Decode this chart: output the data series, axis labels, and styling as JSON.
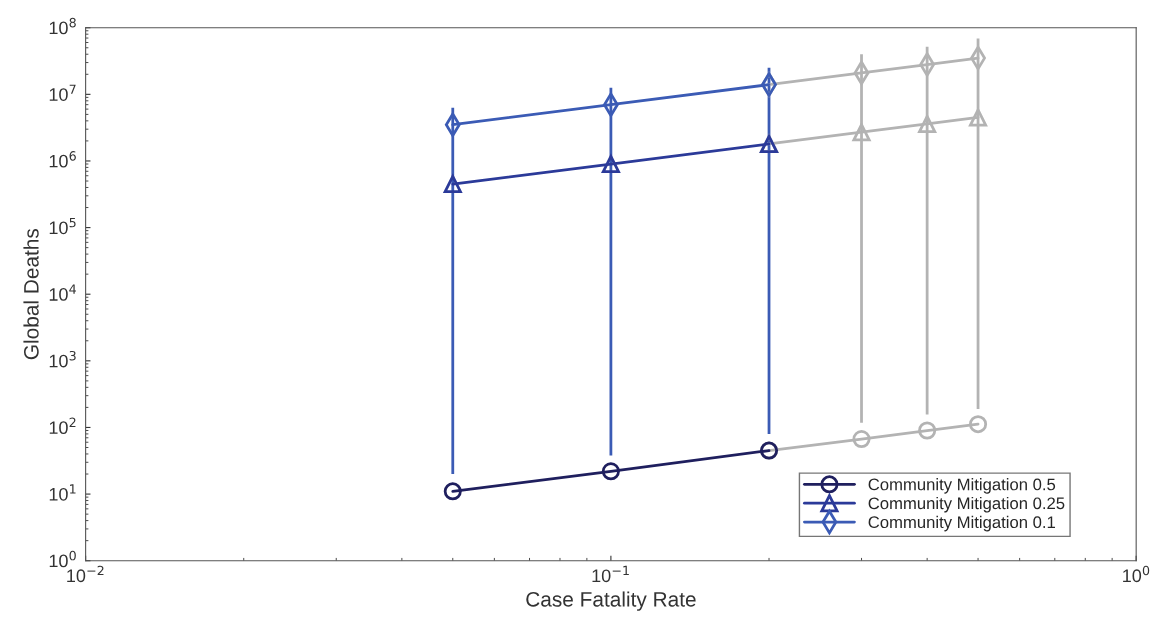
{
  "chart_data": {
    "type": "line",
    "xlabel": "Case Fatality Rate",
    "ylabel": "Global Deaths",
    "log": "xy",
    "xlim": [
      0.01,
      1
    ],
    "ylim": [
      1,
      100000000
    ],
    "xticks": [
      {
        "value": 0.01,
        "label": "10$^{−2}$"
      },
      {
        "value": 0.1,
        "label": "10$^{−1}$"
      },
      {
        "value": 1,
        "label": "10$^{0}$"
      }
    ],
    "yticks": [
      {
        "value": 1,
        "label": "10$^{0}$"
      },
      {
        "value": 10,
        "label": "10$^{1}$"
      },
      {
        "value": 100,
        "label": "10$^{2}$"
      },
      {
        "value": 1000,
        "label": "10$^{3}$"
      },
      {
        "value": 10000,
        "label": "10$^{4}$"
      },
      {
        "value": 100000,
        "label": "10$^{5}$"
      },
      {
        "value": 1000000,
        "label": "10$^{6}$"
      },
      {
        "value": 10000000,
        "label": "10$^{7}$"
      },
      {
        "value": 100000000,
        "label": "10$^{8}$"
      }
    ],
    "grid": false,
    "legend": "bottom right",
    "series": [
      {
        "marker": "circle",
        "color": "#b3b3b3",
        "x": [
          0.2,
          0.3,
          0.4,
          0.5
        ],
        "values": [
          45,
          67,
          90,
          112
        ]
      },
      {
        "marker": "triangle",
        "color": "#b3b3b3",
        "x": [
          0.2,
          0.3,
          0.4,
          0.5
        ],
        "values": [
          1800000,
          2700000,
          3600000,
          4500000
        ]
      },
      {
        "marker": "diamond",
        "color": "#b3b3b3",
        "x": [
          0.2,
          0.3,
          0.4,
          0.5
        ],
        "values": [
          14000000,
          21000000,
          28000000,
          35000000
        ],
        "errors": [
          null,
          [
            118,
            40000000
          ],
          [
            156,
            52000000
          ],
          [
            190,
            69000000
          ]
        ]
      },
      {
        "name": "Community Mitigation 0.5",
        "marker": "circle",
        "color": "#1f1f5e",
        "x": [
          0.05,
          0.1,
          0.2
        ],
        "values": [
          11,
          22,
          45
        ]
      },
      {
        "name": "Community Mitigation 0.25",
        "marker": "triangle",
        "color": "#2b3a99",
        "x": [
          0.05,
          0.1,
          0.2
        ],
        "values": [
          450000,
          900000,
          1800000
        ]
      },
      {
        "name": "Community Mitigation 0.1",
        "marker": "diamond",
        "color": "#3b5bb5",
        "x": [
          0.05,
          0.1,
          0.2
        ],
        "values": [
          3500000,
          7000000,
          14000000
        ],
        "errors": [
          [
            20,
            6300000
          ],
          [
            38,
            12600000
          ],
          [
            80,
            25000000
          ]
        ]
      }
    ]
  }
}
